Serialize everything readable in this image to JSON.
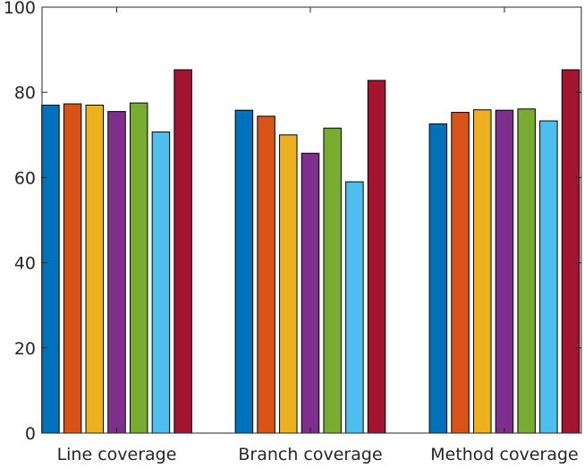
{
  "chart_data": {
    "type": "bar",
    "title": "",
    "xlabel": "",
    "ylabel": "",
    "categories": [
      "Line coverage",
      "Branch coverage",
      "Method coverage"
    ],
    "ylim": [
      0,
      100
    ],
    "yticks": [
      0,
      20,
      40,
      60,
      80,
      100
    ],
    "ytick_labels": [
      "0",
      "20",
      "40",
      "60",
      "80",
      "100"
    ],
    "grid": false,
    "legend": "none",
    "series": [
      {
        "color": "#0072BD",
        "values": [
          77.0,
          75.8,
          72.6
        ]
      },
      {
        "color": "#D95319",
        "values": [
          77.3,
          74.4,
          75.3
        ]
      },
      {
        "color": "#EDB120",
        "values": [
          77.0,
          70.0,
          75.9
        ]
      },
      {
        "color": "#7E2F8E",
        "values": [
          75.5,
          65.7,
          75.8
        ]
      },
      {
        "color": "#77AC30",
        "values": [
          77.5,
          71.6,
          76.1
        ]
      },
      {
        "color": "#4DBEEE",
        "values": [
          70.7,
          59.0,
          73.3
        ]
      },
      {
        "color": "#A2142F",
        "values": [
          85.3,
          82.8,
          85.3
        ]
      }
    ]
  }
}
